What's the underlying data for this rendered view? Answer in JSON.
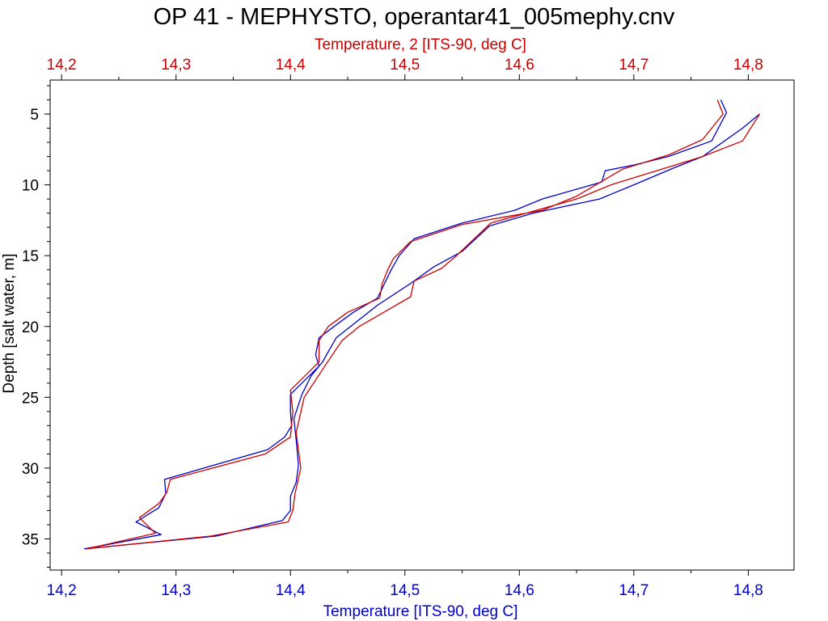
{
  "chart_data": {
    "type": "line",
    "title": "OP 41 - MEPHYSTO, operantar41_005mephy.cnv",
    "xlabel_top": "Temperature, 2 [ITS-90, deg C]",
    "xlabel_bottom": "Temperature [ITS-90, deg C]",
    "ylabel": "Depth [salt water, m]",
    "xlim": [
      14.19,
      14.84
    ],
    "ylim": [
      37.2,
      2.6
    ],
    "y_inverted": true,
    "x_ticks": [
      "14,2",
      "14,3",
      "14,4",
      "14,5",
      "14,6",
      "14,7",
      "14,8"
    ],
    "y_ticks": [
      "5",
      "10",
      "15",
      "20",
      "25",
      "30",
      "35"
    ],
    "grid": false,
    "colors": {
      "axis": "#000000",
      "series_bottom": "#0000cc",
      "series_top": "#cc0000",
      "background": "#ffffff"
    },
    "series": [
      {
        "name": "Temperature [ITS-90, deg C]",
        "axis": "bottom",
        "color": "#0000cc",
        "points": [
          [
            14.776,
            4.0
          ],
          [
            14.781,
            4.9
          ],
          [
            14.768,
            6.9
          ],
          [
            14.73,
            8.0
          ],
          [
            14.7,
            8.6
          ],
          [
            14.675,
            9.0
          ],
          [
            14.672,
            9.8
          ],
          [
            14.62,
            11.0
          ],
          [
            14.596,
            11.8
          ],
          [
            14.55,
            12.7
          ],
          [
            14.508,
            13.8
          ],
          [
            14.495,
            15.0
          ],
          [
            14.488,
            16.0
          ],
          [
            14.482,
            17.0
          ],
          [
            14.476,
            18.0
          ],
          [
            14.455,
            19.0
          ],
          [
            14.438,
            20.0
          ],
          [
            14.425,
            20.8
          ],
          [
            14.422,
            22.0
          ],
          [
            14.425,
            22.8
          ],
          [
            14.4,
            24.8
          ],
          [
            14.4,
            26.0
          ],
          [
            14.401,
            27.0
          ],
          [
            14.395,
            27.8
          ],
          [
            14.38,
            28.7
          ],
          [
            14.29,
            30.8
          ],
          [
            14.291,
            31.8
          ],
          [
            14.285,
            32.8
          ],
          [
            14.265,
            33.8
          ],
          [
            14.287,
            34.7
          ],
          [
            14.22,
            35.7
          ],
          [
            14.335,
            34.8
          ],
          [
            14.393,
            33.7
          ],
          [
            14.4,
            33.0
          ],
          [
            14.4,
            32.0
          ],
          [
            14.405,
            31.0
          ],
          [
            14.407,
            29.8
          ],
          [
            14.405,
            28.0
          ],
          [
            14.403,
            26.5
          ],
          [
            14.41,
            24.8
          ],
          [
            14.418,
            23.5
          ],
          [
            14.428,
            22.5
          ],
          [
            14.44,
            20.8
          ],
          [
            14.476,
            18.5
          ],
          [
            14.506,
            16.9
          ],
          [
            14.525,
            15.8
          ],
          [
            14.55,
            14.7
          ],
          [
            14.574,
            12.9
          ],
          [
            14.612,
            12.0
          ],
          [
            14.67,
            11.0
          ],
          [
            14.7,
            10.0
          ],
          [
            14.735,
            8.8
          ],
          [
            14.76,
            8.0
          ],
          [
            14.795,
            6.0
          ],
          [
            14.81,
            5.0
          ]
        ]
      },
      {
        "name": "Temperature, 2 [ITS-90, deg C]",
        "axis": "top",
        "color": "#cc0000",
        "points": [
          [
            14.773,
            4.0
          ],
          [
            14.778,
            5.0
          ],
          [
            14.76,
            6.8
          ],
          [
            14.73,
            7.9
          ],
          [
            14.69,
            8.9
          ],
          [
            14.65,
            10.8
          ],
          [
            14.62,
            11.8
          ],
          [
            14.55,
            12.8
          ],
          [
            14.505,
            14.0
          ],
          [
            14.49,
            15.2
          ],
          [
            14.485,
            16.0
          ],
          [
            14.48,
            17.0
          ],
          [
            14.478,
            18.0
          ],
          [
            14.45,
            19.0
          ],
          [
            14.433,
            20.0
          ],
          [
            14.425,
            21.0
          ],
          [
            14.425,
            22.5
          ],
          [
            14.4,
            24.5
          ],
          [
            14.402,
            26.0
          ],
          [
            14.4,
            27.8
          ],
          [
            14.378,
            29.0
          ],
          [
            14.295,
            30.8
          ],
          [
            14.292,
            31.7
          ],
          [
            14.285,
            32.5
          ],
          [
            14.268,
            33.5
          ],
          [
            14.282,
            34.6
          ],
          [
            14.222,
            35.7
          ],
          [
            14.33,
            34.8
          ],
          [
            14.398,
            33.8
          ],
          [
            14.402,
            33.0
          ],
          [
            14.404,
            31.8
          ],
          [
            14.409,
            30.0
          ],
          [
            14.405,
            27.5
          ],
          [
            14.412,
            25.0
          ],
          [
            14.43,
            22.8
          ],
          [
            14.445,
            21.0
          ],
          [
            14.46,
            20.0
          ],
          [
            14.505,
            17.9
          ],
          [
            14.508,
            16.8
          ],
          [
            14.532,
            15.9
          ],
          [
            14.545,
            15.0
          ],
          [
            14.575,
            12.7
          ],
          [
            14.65,
            11.0
          ],
          [
            14.68,
            10.0
          ],
          [
            14.72,
            9.0
          ],
          [
            14.76,
            8.0
          ],
          [
            14.795,
            6.9
          ],
          [
            14.81,
            5.0
          ]
        ]
      }
    ]
  }
}
